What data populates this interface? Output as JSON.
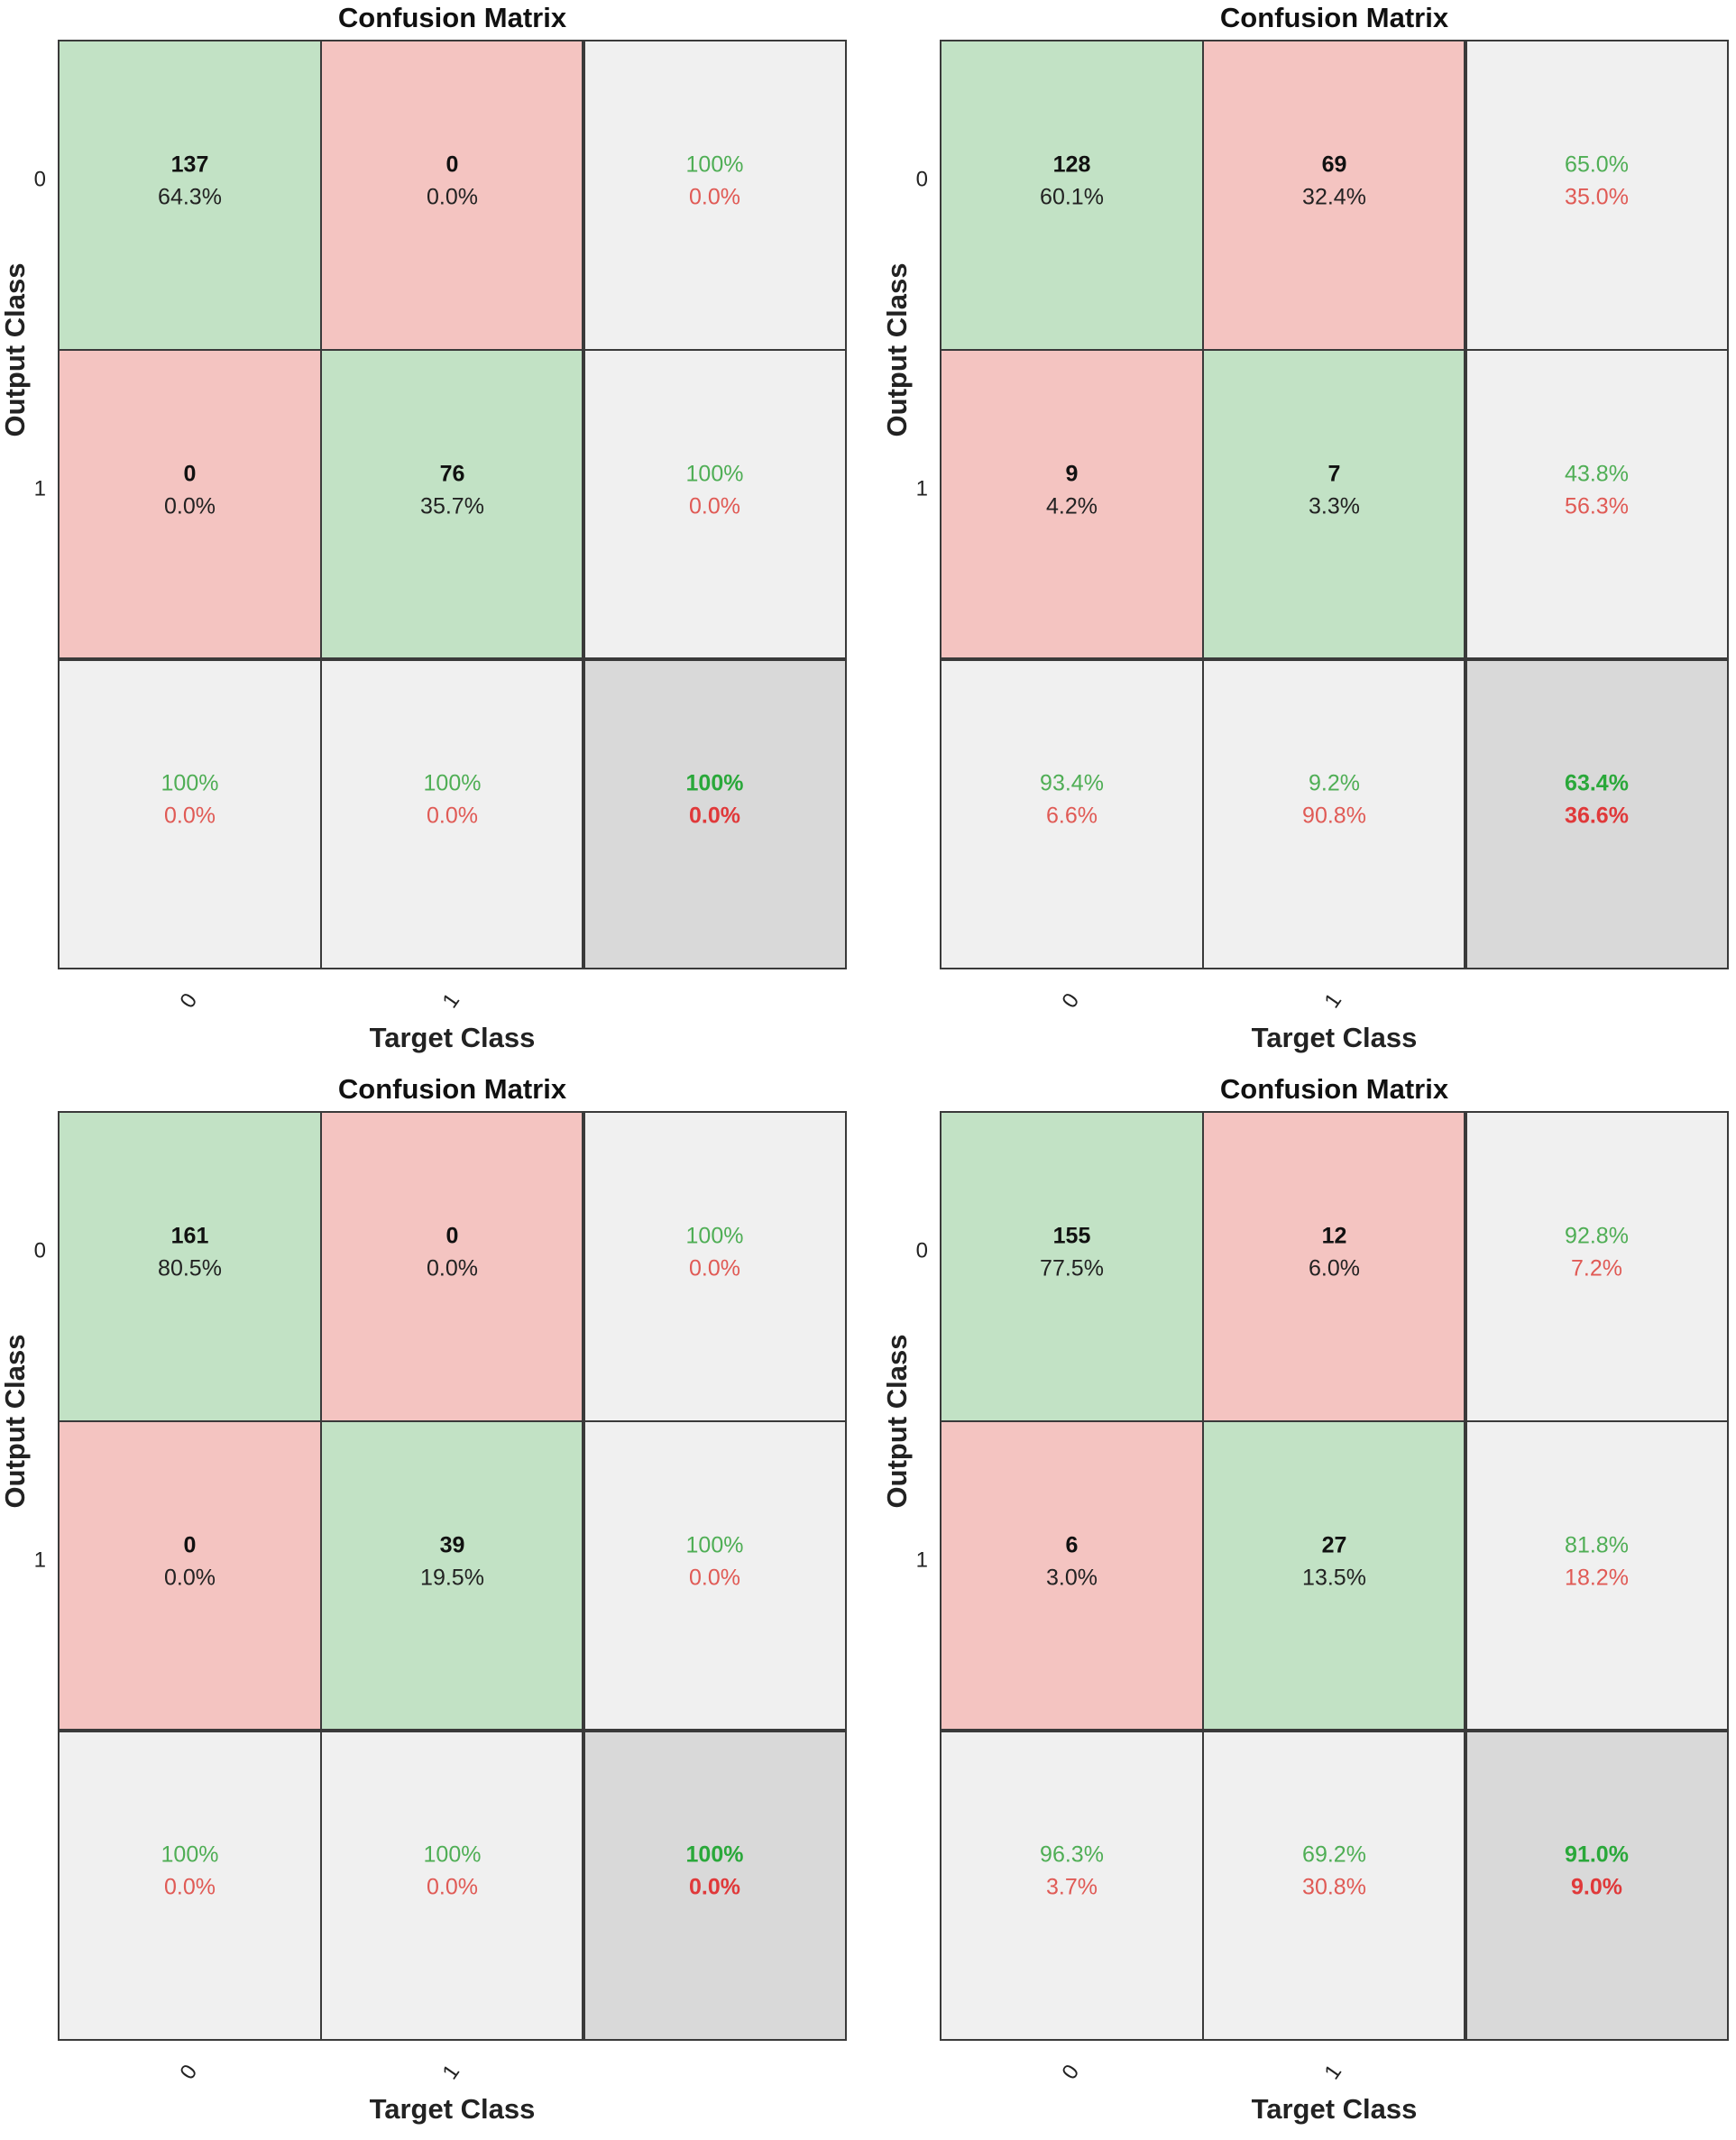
{
  "colors": {
    "correct_fill": "#c2e2c5",
    "incorrect_fill": "#f4c4c1",
    "summary_fill": "#f0f0f0",
    "overall_fill": "#d9d9d9",
    "green_text": "#4fae55",
    "red_text": "#e05a55",
    "grid_line": "#3a3a3a"
  },
  "chart_data": [
    {
      "type": "heatmap",
      "title": "Confusion Matrix",
      "xlabel": "Target Class",
      "ylabel": "Output Class",
      "x_ticks": [
        "0",
        "1"
      ],
      "y_ticks": [
        "0",
        "1"
      ],
      "cells": [
        [
          {
            "count": "137",
            "pct": "64.3%"
          },
          {
            "count": "0",
            "pct": "0.0%"
          }
        ],
        [
          {
            "count": "0",
            "pct": "0.0%"
          },
          {
            "count": "76",
            "pct": "35.7%"
          }
        ]
      ],
      "row_summary": [
        {
          "correct": "100%",
          "error": "0.0%"
        },
        {
          "correct": "100%",
          "error": "0.0%"
        }
      ],
      "col_summary": [
        {
          "correct": "100%",
          "error": "0.0%"
        },
        {
          "correct": "100%",
          "error": "0.0%"
        }
      ],
      "overall": {
        "correct": "100%",
        "error": "0.0%"
      }
    },
    {
      "type": "heatmap",
      "title": "Confusion Matrix",
      "xlabel": "Target Class",
      "ylabel": "Output Class",
      "x_ticks": [
        "0",
        "1"
      ],
      "y_ticks": [
        "0",
        "1"
      ],
      "cells": [
        [
          {
            "count": "128",
            "pct": "60.1%"
          },
          {
            "count": "69",
            "pct": "32.4%"
          }
        ],
        [
          {
            "count": "9",
            "pct": "4.2%"
          },
          {
            "count": "7",
            "pct": "3.3%"
          }
        ]
      ],
      "row_summary": [
        {
          "correct": "65.0%",
          "error": "35.0%"
        },
        {
          "correct": "43.8%",
          "error": "56.3%"
        }
      ],
      "col_summary": [
        {
          "correct": "93.4%",
          "error": "6.6%"
        },
        {
          "correct": "9.2%",
          "error": "90.8%"
        }
      ],
      "overall": {
        "correct": "63.4%",
        "error": "36.6%"
      }
    },
    {
      "type": "heatmap",
      "title": "Confusion Matrix",
      "xlabel": "Target Class",
      "ylabel": "Output Class",
      "x_ticks": [
        "0",
        "1"
      ],
      "y_ticks": [
        "0",
        "1"
      ],
      "cells": [
        [
          {
            "count": "161",
            "pct": "80.5%"
          },
          {
            "count": "0",
            "pct": "0.0%"
          }
        ],
        [
          {
            "count": "0",
            "pct": "0.0%"
          },
          {
            "count": "39",
            "pct": "19.5%"
          }
        ]
      ],
      "row_summary": [
        {
          "correct": "100%",
          "error": "0.0%"
        },
        {
          "correct": "100%",
          "error": "0.0%"
        }
      ],
      "col_summary": [
        {
          "correct": "100%",
          "error": "0.0%"
        },
        {
          "correct": "100%",
          "error": "0.0%"
        }
      ],
      "overall": {
        "correct": "100%",
        "error": "0.0%"
      }
    },
    {
      "type": "heatmap",
      "title": "Confusion Matrix",
      "xlabel": "Target Class",
      "ylabel": "Output Class",
      "x_ticks": [
        "0",
        "1"
      ],
      "y_ticks": [
        "0",
        "1"
      ],
      "cells": [
        [
          {
            "count": "155",
            "pct": "77.5%"
          },
          {
            "count": "12",
            "pct": "6.0%"
          }
        ],
        [
          {
            "count": "6",
            "pct": "3.0%"
          },
          {
            "count": "27",
            "pct": "13.5%"
          }
        ]
      ],
      "row_summary": [
        {
          "correct": "92.8%",
          "error": "7.2%"
        },
        {
          "correct": "81.8%",
          "error": "18.2%"
        }
      ],
      "col_summary": [
        {
          "correct": "96.3%",
          "error": "3.7%"
        },
        {
          "correct": "69.2%",
          "error": "30.8%"
        }
      ],
      "overall": {
        "correct": "91.0%",
        "error": "9.0%"
      }
    }
  ]
}
